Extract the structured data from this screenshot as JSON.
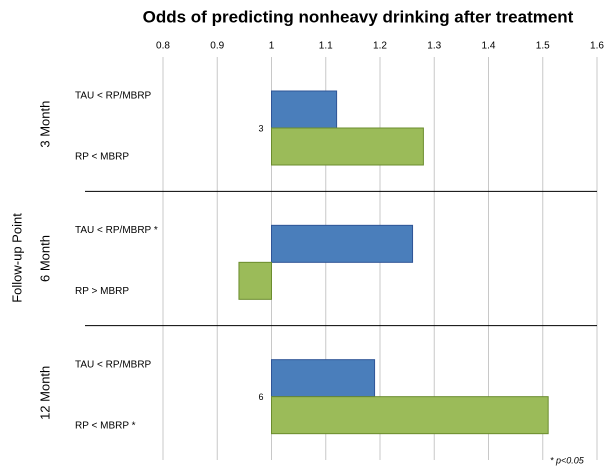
{
  "chart_data": {
    "type": "bar",
    "orientation": "horizontal",
    "title": "Odds of predicting nonheavy drinking after treatment",
    "ylabel": "Follow-up Point",
    "groups": [
      "3 Month",
      "6 Month",
      "12 Month"
    ],
    "categories": [
      "TAU < RP/MBRP",
      "RP < MBRP",
      "TAU < RP/MBRP *",
      "RP > MBRP",
      "TAU < RP/MBRP",
      "RP < MBRP *"
    ],
    "values": [
      1.12,
      1.28,
      1.26,
      0.94,
      1.19,
      1.51
    ],
    "colors": [
      "#4a7ebb",
      "#9bbb59",
      "#4a7ebb",
      "#9bbb59",
      "#4a7ebb",
      "#9bbb59"
    ],
    "base": 1,
    "xlim": [
      0.8,
      1.6
    ],
    "xticks": [
      0.8,
      0.9,
      1,
      1.1,
      1.2,
      1.3,
      1.4,
      1.5,
      1.6
    ],
    "grid": true,
    "annotations": [
      "3",
      "6"
    ],
    "note": "* p<0.05"
  }
}
